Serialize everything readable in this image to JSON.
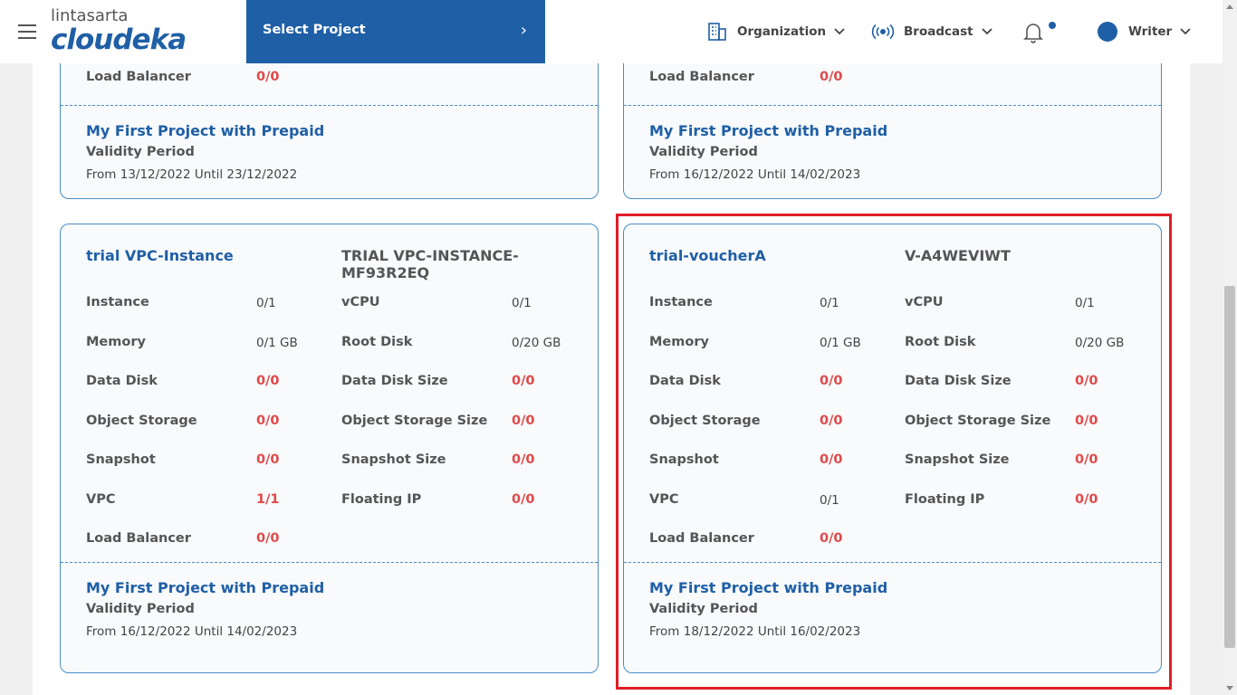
{
  "header": {
    "logo_top": "lintasarta",
    "logo_main": "cloudeka",
    "project_selector": "Select Project",
    "organization": "Organization",
    "broadcast": "Broadcast",
    "user": "Writer"
  },
  "top_cards": [
    {
      "load_balancer_label": "Load Balancer",
      "load_balancer_value": "0/0",
      "footer_title": "My First Project with Prepaid",
      "footer_sub": "Validity Period",
      "footer_range": "From 13/12/2022 Until 23/12/2022"
    },
    {
      "load_balancer_label": "Load Balancer",
      "load_balancer_value": "0/0",
      "footer_title": "My First Project with Prepaid",
      "footer_sub": "Validity Period",
      "footer_range": "From 16/12/2022 Until 14/02/2023"
    }
  ],
  "cards": [
    {
      "title": "trial VPC-Instance",
      "code": "TRIAL VPC-INSTANCE-MF93R2EQ",
      "rows": [
        {
          "l1": "Instance",
          "v1": "0/1",
          "l2": "vCPU",
          "v2": "0/1"
        },
        {
          "l1": "Memory",
          "v1": "0/1 GB",
          "l2": "Root Disk",
          "v2": "0/20 GB"
        },
        {
          "l1": "Data Disk",
          "v1": "0/0",
          "l2": "Data Disk Size",
          "v2": "0/0"
        },
        {
          "l1": "Object Storage",
          "v1": "0/0",
          "l2": "Object Storage Size",
          "v2": "0/0"
        },
        {
          "l1": "Snapshot",
          "v1": "0/0",
          "l2": "Snapshot Size",
          "v2": "0/0"
        },
        {
          "l1": "VPC",
          "v1": "1/1",
          "l2": "Floating IP",
          "v2": "0/0"
        },
        {
          "l1": "Load Balancer",
          "v1": "0/0",
          "l2": "",
          "v2": ""
        }
      ],
      "footer_title": "My First Project with Prepaid",
      "footer_sub": "Validity Period",
      "footer_range": "From 16/12/2022 Until 14/02/2023"
    },
    {
      "title": "trial-voucherA",
      "code": "V-A4WEVIWT",
      "rows": [
        {
          "l1": "Instance",
          "v1": "0/1",
          "l2": "vCPU",
          "v2": "0/1"
        },
        {
          "l1": "Memory",
          "v1": "0/1 GB",
          "l2": "Root Disk",
          "v2": "0/20 GB"
        },
        {
          "l1": "Data Disk",
          "v1": "0/0",
          "l2": "Data Disk Size",
          "v2": "0/0"
        },
        {
          "l1": "Object Storage",
          "v1": "0/0",
          "l2": "Object Storage Size",
          "v2": "0/0"
        },
        {
          "l1": "Snapshot",
          "v1": "0/0",
          "l2": "Snapshot Size",
          "v2": "0/0"
        },
        {
          "l1": "VPC",
          "v1": "0/1",
          "l2": "Floating IP",
          "v2": "0/0"
        },
        {
          "l1": "Load Balancer",
          "v1": "0/0",
          "l2": "",
          "v2": ""
        }
      ],
      "footer_title": "My First Project with Prepaid",
      "footer_sub": "Validity Period",
      "footer_range": "From 18/12/2022 Until 16/02/2023"
    }
  ],
  "colors": {
    "brand_blue": "#1f5fa6",
    "alert_red": "#e04a4a",
    "highlight": "#e01e26"
  }
}
